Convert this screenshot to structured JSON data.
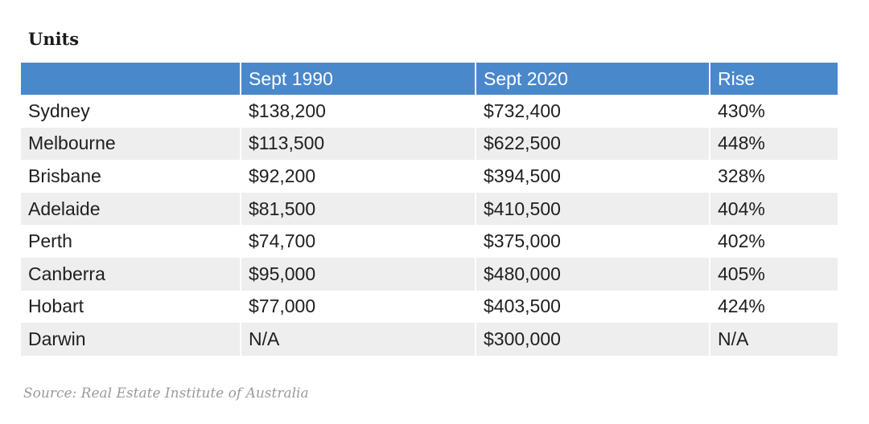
{
  "title": "Units",
  "source": "Source: Real Estate Institute of Australia",
  "colors": {
    "header_bg": "#4a88cc",
    "header_text": "#ffffff",
    "row_stripe": "#eeeeee"
  },
  "chart_data": {
    "type": "table",
    "title": "Units",
    "columns": [
      "",
      "Sept 1990",
      "Sept 2020",
      "Rise"
    ],
    "rows": [
      [
        "Sydney",
        "$138,200",
        "$732,400",
        "430%"
      ],
      [
        "Melbourne",
        "$113,500",
        "$622,500",
        "448%"
      ],
      [
        "Brisbane",
        "$92,200",
        "$394,500",
        "328%"
      ],
      [
        "Adelaide",
        "$81,500",
        "$410,500",
        "404%"
      ],
      [
        "Perth",
        "$74,700",
        "$375,000",
        "402%"
      ],
      [
        "Canberra",
        "$95,000",
        "$480,000",
        "405%"
      ],
      [
        "Hobart",
        "$77,000",
        "$403,500",
        "424%"
      ],
      [
        "Darwin",
        "N/A",
        "$300,000",
        "N/A"
      ]
    ]
  }
}
